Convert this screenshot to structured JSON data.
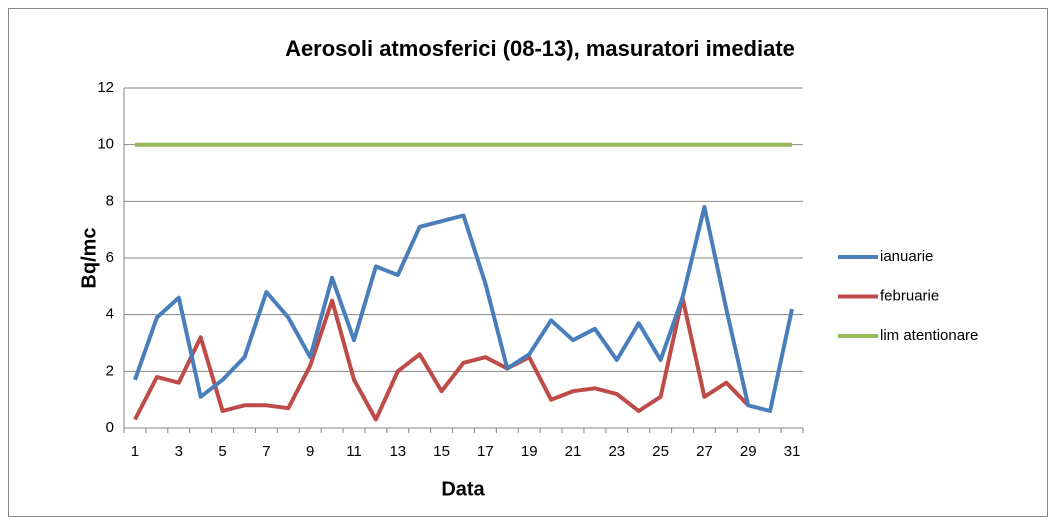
{
  "chart_data": {
    "type": "line",
    "title": "Aerosoli atmosferici (08-13), masuratori imediate",
    "xlabel": "Data",
    "ylabel": "Bq/mc",
    "categories": [
      "1",
      null,
      "3",
      null,
      "5",
      null,
      "7",
      null,
      "9",
      null,
      "11",
      null,
      "13",
      null,
      "15",
      null,
      "17",
      null,
      "19",
      null,
      "21",
      null,
      "23",
      null,
      "25",
      null,
      "27",
      null,
      "29",
      null,
      "31"
    ],
    "series": [
      {
        "name": "ianuarie",
        "color": "#4a7ebb",
        "values": [
          1.7,
          3.9,
          4.6,
          1.1,
          1.7,
          2.5,
          4.8,
          3.9,
          2.5,
          5.3,
          3.1,
          5.7,
          5.4,
          7.1,
          7.3,
          7.5,
          5.1,
          2.1,
          2.6,
          3.8,
          3.1,
          3.5,
          2.4,
          3.7,
          2.4,
          4.6,
          7.8,
          4.2,
          0.8,
          0.6,
          4.2
        ]
      },
      {
        "name": "februarie",
        "color": "#be4b48",
        "values": [
          0.3,
          1.8,
          1.6,
          3.2,
          0.6,
          0.8,
          0.8,
          0.7,
          2.2,
          4.5,
          1.7,
          0.3,
          2.0,
          2.6,
          1.3,
          2.3,
          2.5,
          2.1,
          2.5,
          1.0,
          1.3,
          1.4,
          1.2,
          0.6,
          1.1,
          4.6,
          1.1,
          1.6,
          0.8,
          null,
          null
        ]
      },
      {
        "name": "lim atentionare",
        "color": "#98b954",
        "values": [
          10,
          10,
          10,
          10,
          10,
          10,
          10,
          10,
          10,
          10,
          10,
          10,
          10,
          10,
          10,
          10,
          10,
          10,
          10,
          10,
          10,
          10,
          10,
          10,
          10,
          10,
          10,
          10,
          10,
          10,
          10
        ]
      }
    ],
    "ylim": [
      0,
      12
    ],
    "yticks": [
      0,
      2,
      4,
      6,
      8,
      10,
      12
    ],
    "grid": true,
    "legend": "right"
  }
}
